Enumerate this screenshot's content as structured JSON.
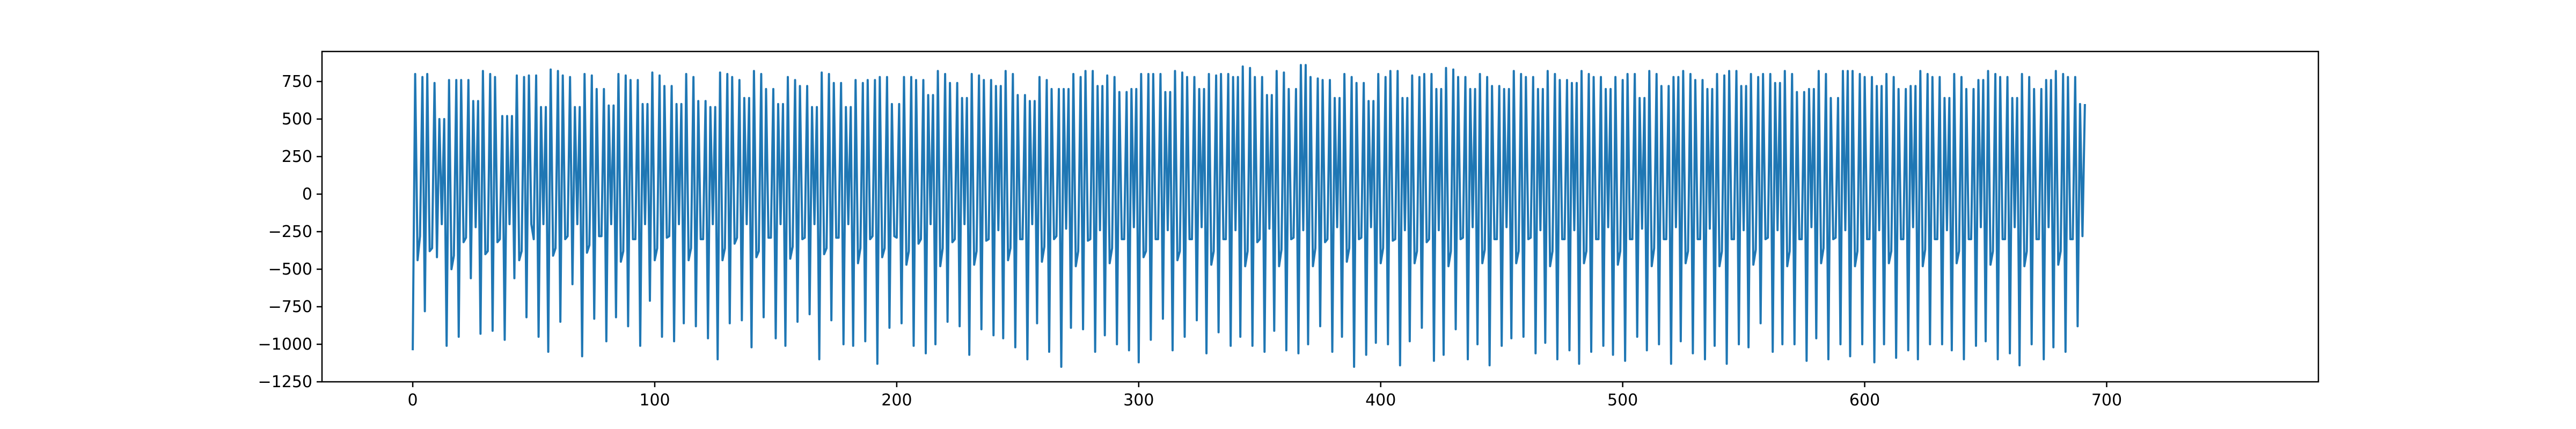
{
  "chart_data": {
    "type": "line",
    "title": "",
    "xlabel": "",
    "ylabel": "",
    "xlim": [
      -37.5,
      787.5
    ],
    "ylim": [
      -1250,
      950
    ],
    "x_ticks": [
      0,
      100,
      200,
      300,
      400,
      500,
      600,
      700
    ],
    "y_ticks": [
      -1250,
      -1000,
      -750,
      -500,
      -250,
      0,
      250,
      500,
      750
    ],
    "grid": false,
    "legend": "none",
    "colors": {
      "series": "#1f77b4"
    },
    "series": [
      {
        "x_start": 0,
        "x_step": 1,
        "values": [
          -1040,
          800,
          -440,
          -280,
          780,
          -780,
          800,
          -380,
          -360,
          740,
          -420,
          500,
          -200,
          500,
          -1010,
          760,
          -500,
          -410,
          760,
          -950,
          760,
          -320,
          -290,
          760,
          -560,
          620,
          -220,
          620,
          -930,
          820,
          -400,
          -380,
          800,
          -910,
          780,
          -320,
          -300,
          520,
          -970,
          520,
          -200,
          520,
          -560,
          790,
          -440,
          -380,
          780,
          -820,
          790,
          -200,
          -300,
          790,
          -950,
          580,
          -200,
          580,
          -1050,
          830,
          -410,
          -360,
          820,
          -850,
          790,
          -300,
          -280,
          780,
          -600,
          580,
          -200,
          580,
          -1080,
          800,
          -390,
          -340,
          790,
          -830,
          700,
          -280,
          -280,
          700,
          -980,
          590,
          -200,
          590,
          -820,
          800,
          -450,
          -380,
          790,
          -880,
          760,
          -300,
          -300,
          760,
          -1010,
          600,
          -200,
          600,
          -710,
          810,
          -440,
          -360,
          790,
          -950,
          720,
          -290,
          -280,
          720,
          -980,
          600,
          -200,
          600,
          -860,
          800,
          -440,
          -360,
          780,
          -880,
          620,
          -300,
          -300,
          620,
          -960,
          580,
          -200,
          580,
          -1100,
          810,
          -440,
          -360,
          800,
          -860,
          780,
          -330,
          -290,
          760,
          -840,
          640,
          -200,
          640,
          -1020,
          820,
          -420,
          -380,
          800,
          -820,
          700,
          -290,
          -290,
          700,
          -960,
          600,
          -200,
          600,
          -1010,
          780,
          -430,
          -350,
          760,
          -850,
          720,
          -300,
          -290,
          720,
          -800,
          580,
          -200,
          580,
          -1100,
          810,
          -400,
          -360,
          800,
          -840,
          740,
          -290,
          -290,
          740,
          -1000,
          580,
          -200,
          580,
          -1010,
          760,
          -460,
          -360,
          740,
          -980,
          760,
          -300,
          -280,
          760,
          -1130,
          780,
          -420,
          -360,
          780,
          -890,
          600,
          -280,
          -290,
          600,
          -860,
          780,
          -470,
          -380,
          780,
          -1010,
          760,
          -330,
          -300,
          760,
          -1060,
          660,
          -200,
          660,
          -1000,
          820,
          -480,
          -360,
          800,
          -850,
          740,
          -320,
          -300,
          740,
          -880,
          640,
          -200,
          640,
          -1070,
          800,
          -470,
          -380,
          790,
          -900,
          760,
          -310,
          -300,
          760,
          -940,
          720,
          -240,
          720,
          -960,
          820,
          -440,
          -360,
          800,
          -1020,
          660,
          -300,
          -300,
          660,
          -1100,
          620,
          -200,
          620,
          -860,
          780,
          -450,
          -350,
          760,
          -1050,
          700,
          -300,
          -280,
          700,
          -1150,
          700,
          -230,
          700,
          -890,
          800,
          -480,
          -380,
          780,
          -900,
          820,
          -310,
          -300,
          820,
          -1050,
          720,
          -240,
          720,
          -940,
          790,
          -460,
          -360,
          780,
          -1000,
          680,
          -300,
          -300,
          680,
          -1040,
          700,
          -220,
          700,
          -1120,
          800,
          -420,
          -380,
          800,
          -970,
          800,
          -300,
          -300,
          800,
          -830,
          680,
          -240,
          680,
          -1040,
          820,
          -440,
          -380,
          810,
          -950,
          780,
          -300,
          -300,
          780,
          -840,
          700,
          -220,
          700,
          -1060,
          800,
          -470,
          -380,
          790,
          -920,
          800,
          -300,
          -300,
          800,
          -1010,
          780,
          -240,
          780,
          -950,
          850,
          -480,
          -380,
          840,
          -1010,
          780,
          -320,
          -300,
          780,
          -1050,
          660,
          -230,
          660,
          -910,
          820,
          -480,
          -370,
          810,
          -1040,
          700,
          -300,
          -290,
          700,
          -1060,
          860,
          -240,
          860,
          -1000,
          780,
          -480,
          -360,
          770,
          -880,
          760,
          -320,
          -300,
          760,
          -1050,
          640,
          -220,
          640,
          -950,
          800,
          -450,
          -360,
          780,
          -1150,
          740,
          -300,
          -290,
          740,
          -1070,
          620,
          -220,
          620,
          -990,
          800,
          -460,
          -360,
          780,
          -1000,
          820,
          -310,
          -300,
          820,
          -1140,
          640,
          -240,
          640,
          -980,
          790,
          -460,
          -380,
          780,
          -890,
          800,
          -320,
          -300,
          800,
          -1110,
          700,
          -240,
          700,
          -1070,
          840,
          -480,
          -380,
          830,
          -900,
          780,
          -300,
          -290,
          780,
          -1100,
          700,
          -220,
          700,
          -1000,
          800,
          -460,
          -370,
          780,
          -1140,
          720,
          -300,
          -300,
          720,
          -1010,
          700,
          -220,
          700,
          -960,
          820,
          -460,
          -380,
          800,
          -950,
          780,
          -300,
          -290,
          780,
          -1060,
          700,
          -240,
          700,
          -990,
          820,
          -480,
          -380,
          800,
          -1100,
          760,
          -300,
          -300,
          760,
          -1040,
          740,
          -240,
          740,
          -1130,
          820,
          -460,
          -380,
          800,
          -1050,
          780,
          -300,
          -300,
          780,
          -1010,
          700,
          -220,
          700,
          -1070,
          780,
          -470,
          -380,
          760,
          -1110,
          800,
          -300,
          -300,
          800,
          -950,
          640,
          -230,
          640,
          -1040,
          820,
          -480,
          -360,
          800,
          -1000,
          720,
          -300,
          -300,
          720,
          -1130,
          780,
          -220,
          780,
          -980,
          820,
          -460,
          -380,
          800,
          -1060,
          760,
          -300,
          -300,
          760,
          -1100,
          700,
          -230,
          700,
          -1010,
          800,
          -480,
          -380,
          790,
          -1130,
          820,
          -300,
          -300,
          820,
          -1000,
          720,
          -240,
          720,
          -1020,
          800,
          -470,
          -370,
          780,
          -860,
          800,
          -300,
          -290,
          800,
          -1050,
          740,
          -240,
          740,
          -1000,
          820,
          -480,
          -380,
          800,
          -1000,
          680,
          -300,
          -300,
          680,
          -1110,
          700,
          -220,
          700,
          -960,
          820,
          -460,
          -360,
          800,
          -1100,
          640,
          -300,
          -290,
          640,
          -1000,
          820,
          -240,
          820,
          -1080,
          820,
          -480,
          -380,
          800,
          -1000,
          780,
          -300,
          -300,
          780,
          -1120,
          720,
          -240,
          720,
          -1000,
          800,
          -460,
          -380,
          780,
          -1090,
          700,
          -300,
          -300,
          700,
          -1040,
          720,
          -220,
          720,
          -1100,
          820,
          -480,
          -370,
          800,
          -1000,
          780,
          -300,
          -300,
          780,
          -1000,
          640,
          -240,
          640,
          -1040,
          800,
          -460,
          -380,
          780,
          -1100,
          700,
          -300,
          -300,
          700,
          -1010,
          760,
          -220,
          760,
          -980,
          820,
          -470,
          -380,
          800,
          -1100,
          780,
          -300,
          -300,
          780,
          -1060,
          640,
          -220,
          640,
          -1140,
          800,
          -480,
          -380,
          780,
          -1000,
          700,
          -300,
          -300,
          700,
          -1100,
          760,
          -220,
          760,
          -1020,
          820,
          -470,
          -380,
          800,
          -1050,
          780,
          -300,
          -300,
          780,
          -880,
          600,
          -280,
          600
        ]
      }
    ]
  }
}
